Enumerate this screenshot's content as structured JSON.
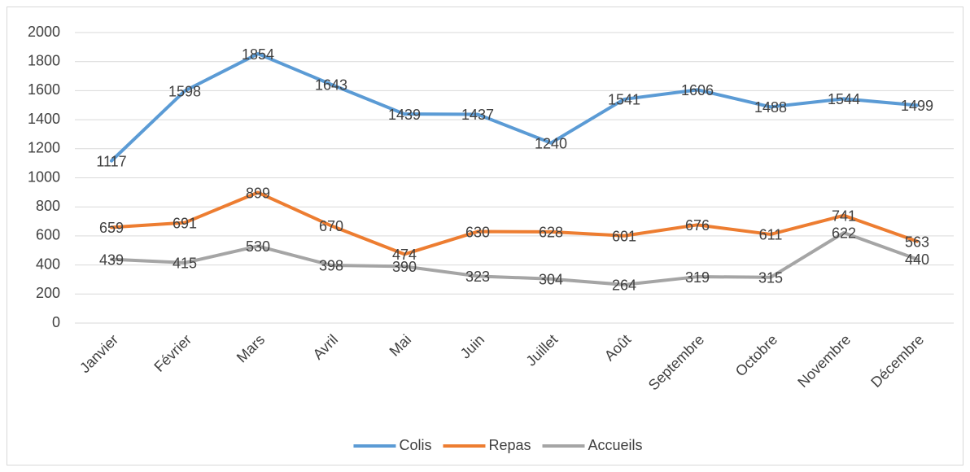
{
  "chart_data": {
    "type": "line",
    "categories": [
      "Janvier",
      "Février",
      "Mars",
      "Avril",
      "Mai",
      "Juin",
      "Juillet",
      "Août",
      "Septembre",
      "Octobre",
      "Novembre",
      "Décembre"
    ],
    "series": [
      {
        "name": "Colis",
        "color": "#5b9bd5",
        "values": [
          1117,
          1598,
          1854,
          1643,
          1439,
          1437,
          1240,
          1541,
          1606,
          1488,
          1544,
          1499
        ]
      },
      {
        "name": "Repas",
        "color": "#ed7d31",
        "values": [
          659,
          691,
          899,
          670,
          474,
          630,
          628,
          601,
          676,
          611,
          741,
          563
        ]
      },
      {
        "name": "Accueils",
        "color": "#a5a5a5",
        "values": [
          439,
          415,
          530,
          398,
          390,
          323,
          304,
          264,
          319,
          315,
          622,
          440
        ]
      }
    ],
    "ylim": [
      0,
      2000
    ],
    "yticks": [
      0,
      200,
      400,
      600,
      800,
      1000,
      1200,
      1400,
      1600,
      1800,
      2000
    ],
    "grid": true,
    "legend": "bottom"
  }
}
